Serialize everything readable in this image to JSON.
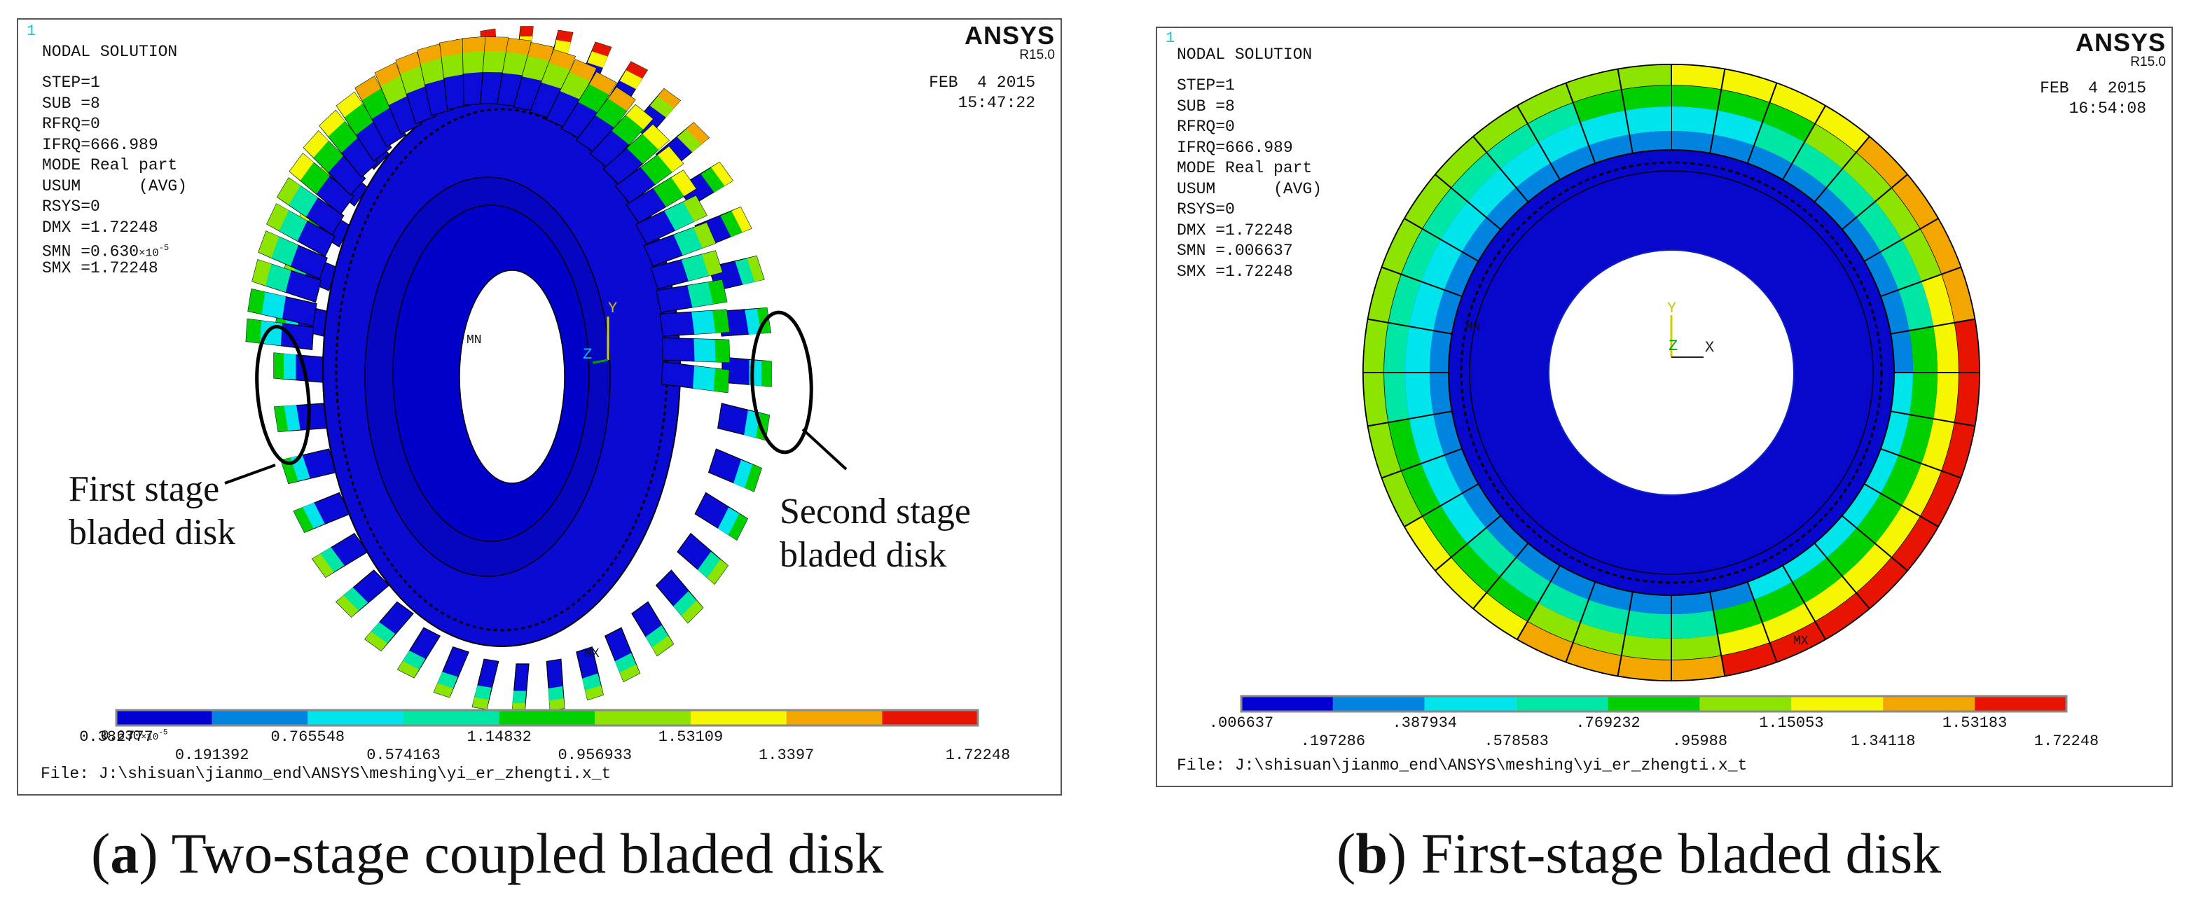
{
  "panel_a": {
    "frame_number": "1",
    "header": "NODAL SOLUTION",
    "params": [
      "STEP=1",
      "SUB =8",
      "RFRQ=0",
      "IFRQ=666.989",
      "MODE Real part",
      "USUM      (AVG)",
      "RSYS=0",
      "DMX =1.72248"
    ],
    "smn_prefix": "SMN =0.630",
    "smn_exp": "×10",
    "smn_exp_power": "-5",
    "smx": "SMX =1.72248",
    "brand": "ANSYS",
    "version": "R15.0",
    "date": "FEB  4 2015",
    "time": "15:47:22",
    "legend_min_mant": "0.630",
    "legend_min_exp": "×10",
    "legend_min_power": "-5",
    "legend_low": [
      "0.191392",
      "0.574163",
      "0.956933",
      "1.3397",
      "1.72248"
    ],
    "legend_high": [
      "0.382777",
      "0.765548",
      "1.14832",
      "1.53109"
    ],
    "file": "File: J:\\shisuan\\jianmo_end\\ANSYS\\meshing\\yi_er_zhengti.x_t",
    "annotation_first": [
      "First stage",
      "bladed disk"
    ],
    "annotation_second": [
      "Second stage",
      "bladed disk"
    ],
    "axis_y": "Y",
    "axis_z": "Z",
    "mn_label": "MN",
    "mx_label": "MX",
    "caption_letter": "a",
    "caption_text": ") Two-stage coupled bladed disk"
  },
  "panel_b": {
    "frame_number": "1",
    "header": "NODAL SOLUTION",
    "params": [
      "STEP=1",
      "SUB =8",
      "RFRQ=0",
      "IFRQ=666.989",
      "MODE Real part",
      "USUM      (AVG)",
      "RSYS=0",
      "DMX =1.72248",
      "SMN =.006637",
      "SMX =1.72248"
    ],
    "brand": "ANSYS",
    "version": "R15.0",
    "date": "FEB  4 2015",
    "time": "16:54:08",
    "legend_low": [
      ".006637",
      ".387934",
      ".769232",
      "1.15053",
      "1.53183"
    ],
    "legend_high": [
      ".197286",
      ".578583",
      ".95988",
      "1.34118",
      "1.72248"
    ],
    "file": "File: J:\\shisuan\\jianmo_end\\ANSYS\\meshing\\yi_er_zhengti.x_t",
    "axis_y": "Y",
    "axis_z": "Z",
    "axis_x": "X",
    "mn_label": "MN",
    "mx_label": "MX",
    "caption_letter": "b",
    "caption_text": ") First-stage bladed disk"
  },
  "colors": {
    "contour": [
      "#0000d2",
      "#0084e0",
      "#00e4ec",
      "#00e6a4",
      "#00d000",
      "#8ce400",
      "#f6f600",
      "#f4a600",
      "#e61400"
    ],
    "frame_number": "#18c4d8",
    "axis_y": "#d0d000",
    "axis_z": "#00a000",
    "axis_x": "#222222"
  }
}
